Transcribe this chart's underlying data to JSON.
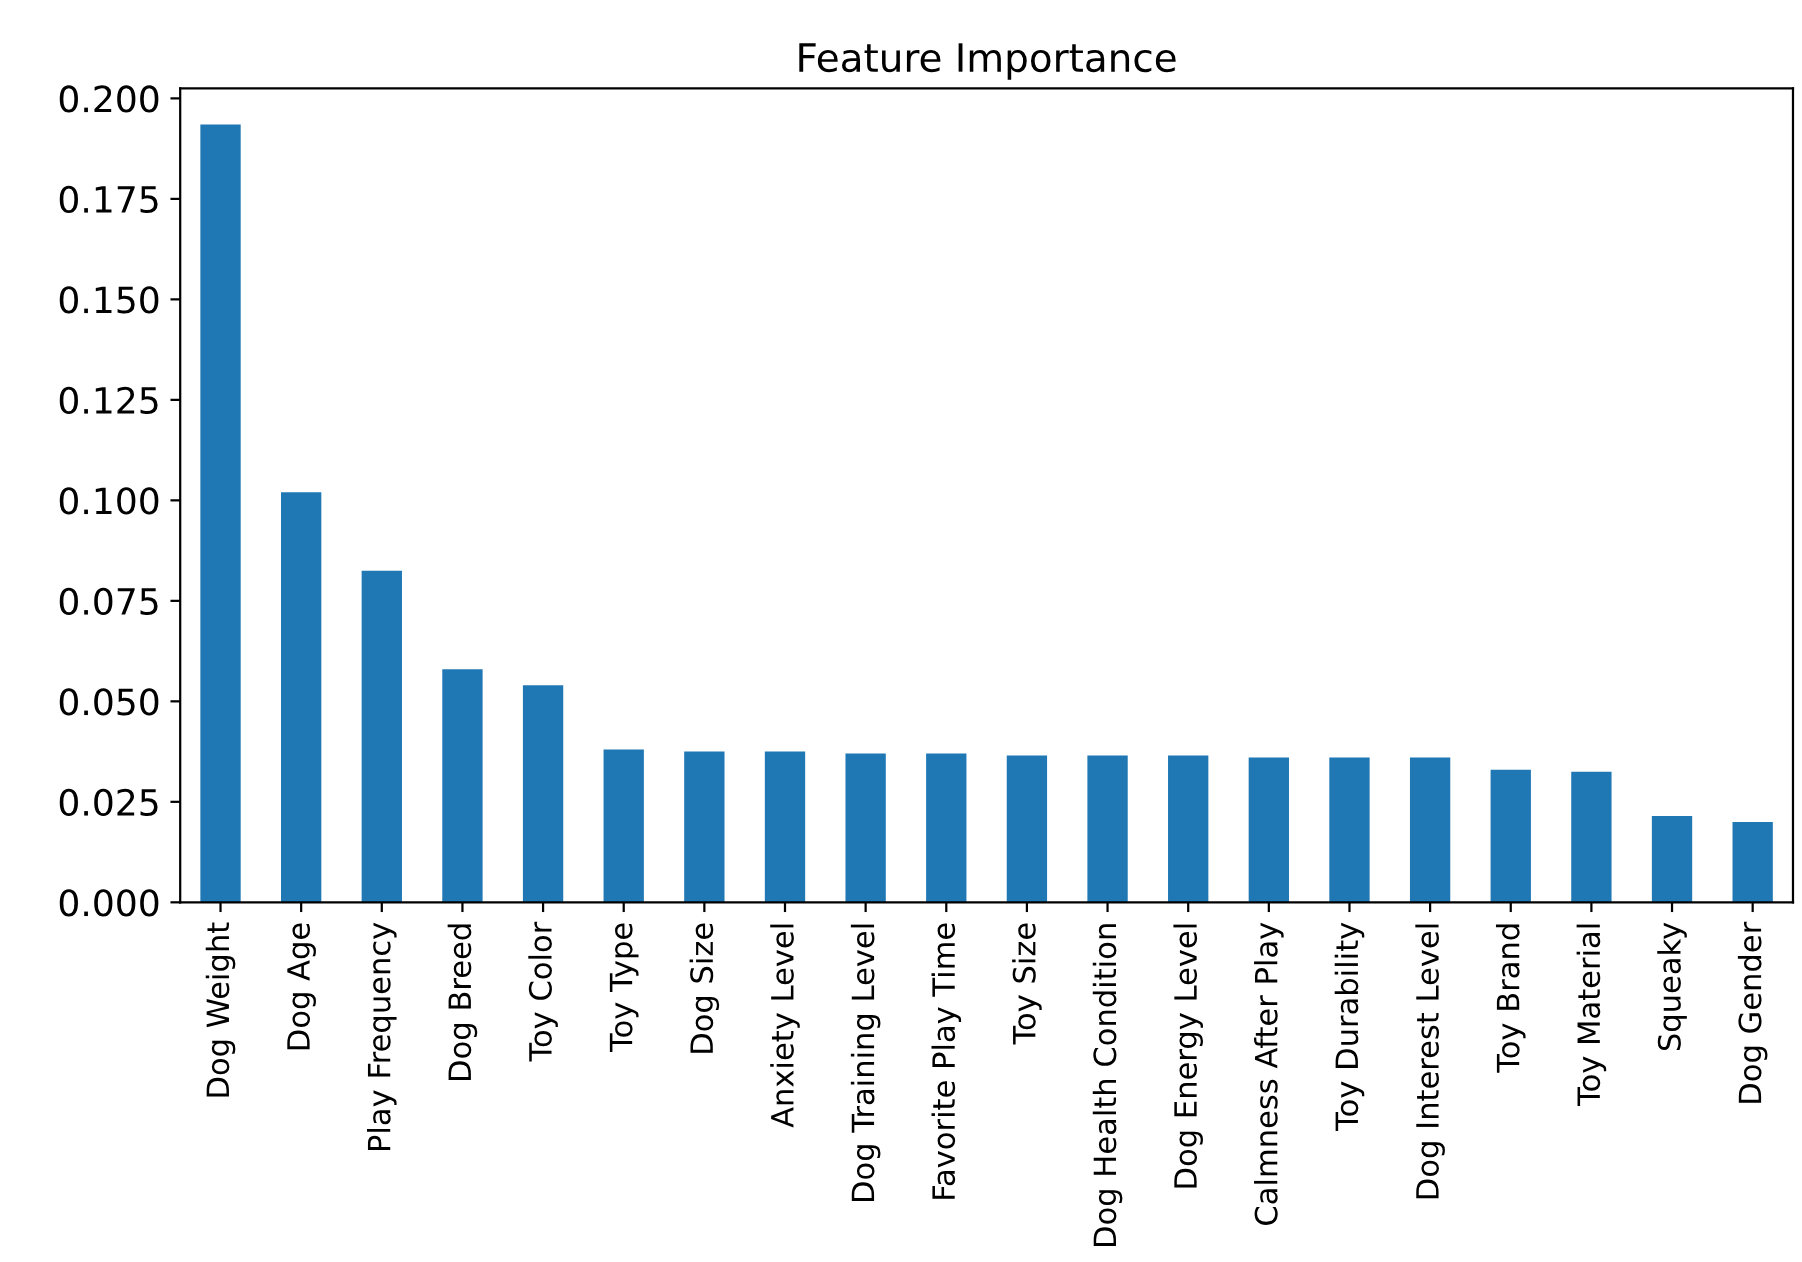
{
  "chart_data": {
    "type": "bar",
    "title": "Feature Importance",
    "categories": [
      "Dog Weight",
      "Dog Age",
      "Play Frequency",
      "Dog Breed",
      "Toy Color",
      "Toy Type",
      "Dog Size",
      "Anxiety Level",
      "Dog Training Level",
      "Favorite Play Time",
      "Toy Size",
      "Dog Health Condition",
      "Dog Energy Level",
      "Calmness After Play",
      "Toy Durability",
      "Dog Interest Level",
      "Toy Brand",
      "Toy Material",
      "Squeaky",
      "Dog Gender"
    ],
    "values": [
      0.1935,
      0.102,
      0.0825,
      0.058,
      0.054,
      0.038,
      0.0375,
      0.0375,
      0.037,
      0.037,
      0.0365,
      0.0365,
      0.0365,
      0.036,
      0.036,
      0.036,
      0.033,
      0.0325,
      0.0215,
      0.02
    ],
    "color": "#1f77b4",
    "ylim": [
      0,
      0.2025
    ],
    "yticks": [
      {
        "value": 0,
        "label": "0.000"
      },
      {
        "value": 0.025,
        "label": "0.025"
      },
      {
        "value": 0.05,
        "label": "0.050"
      },
      {
        "value": 0.075,
        "label": "0.075"
      },
      {
        "value": 0.1,
        "label": "0.100"
      },
      {
        "value": 0.125,
        "label": "0.125"
      },
      {
        "value": 0.15,
        "label": "0.150"
      },
      {
        "value": 0.175,
        "label": "0.175"
      },
      {
        "value": 0.2,
        "label": "0.200"
      }
    ],
    "grid": false,
    "legend": false
  }
}
